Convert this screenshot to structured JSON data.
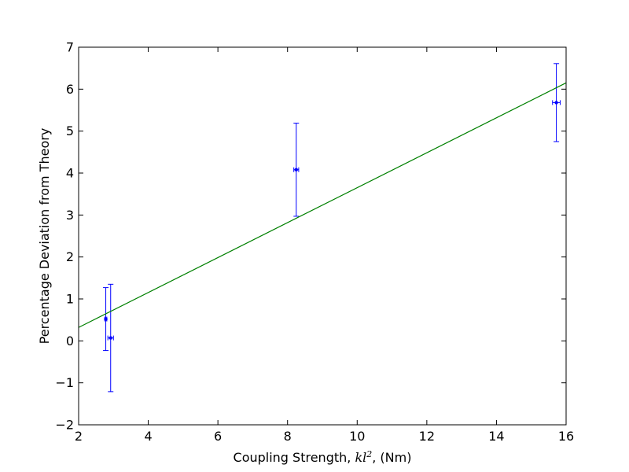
{
  "chart_data": {
    "type": "scatter",
    "title": "",
    "xlabel": {
      "prefix": "Coupling Strength, ",
      "math_base": "kl",
      "math_sup": "2",
      "suffix": ", (Nm)"
    },
    "ylabel": "Percentage Deviation from Theory",
    "xlim": [
      2,
      16
    ],
    "ylim": [
      -2,
      7
    ],
    "grid": false,
    "x_ticks": [
      2,
      4,
      6,
      8,
      10,
      12,
      14,
      16
    ],
    "y_ticks": [
      -2,
      -1,
      0,
      1,
      2,
      3,
      4,
      5,
      6,
      7
    ],
    "x_tick_labels": [
      "2",
      "4",
      "6",
      "8",
      "10",
      "12",
      "14",
      "16"
    ],
    "y_tick_labels": [
      "−2",
      "−1",
      "0",
      "1",
      "2",
      "3",
      "4",
      "5",
      "6",
      "7"
    ],
    "series": [
      {
        "kind": "errorbar",
        "color": "#0000ff",
        "points": [
          {
            "x": 2.78,
            "y": 0.52,
            "yerr": 0.75,
            "xerr": 0.03
          },
          {
            "x": 2.92,
            "y": 0.07,
            "yerr": 1.28,
            "xerr": 0.08
          },
          {
            "x": 8.25,
            "y": 4.08,
            "yerr": 1.11,
            "xerr": 0.07
          },
          {
            "x": 15.72,
            "y": 5.68,
            "yerr": 0.93,
            "xerr": 0.11
          }
        ]
      },
      {
        "kind": "line",
        "color": "#008000",
        "x": [
          2,
          16
        ],
        "y": [
          0.32,
          6.15
        ]
      }
    ]
  }
}
